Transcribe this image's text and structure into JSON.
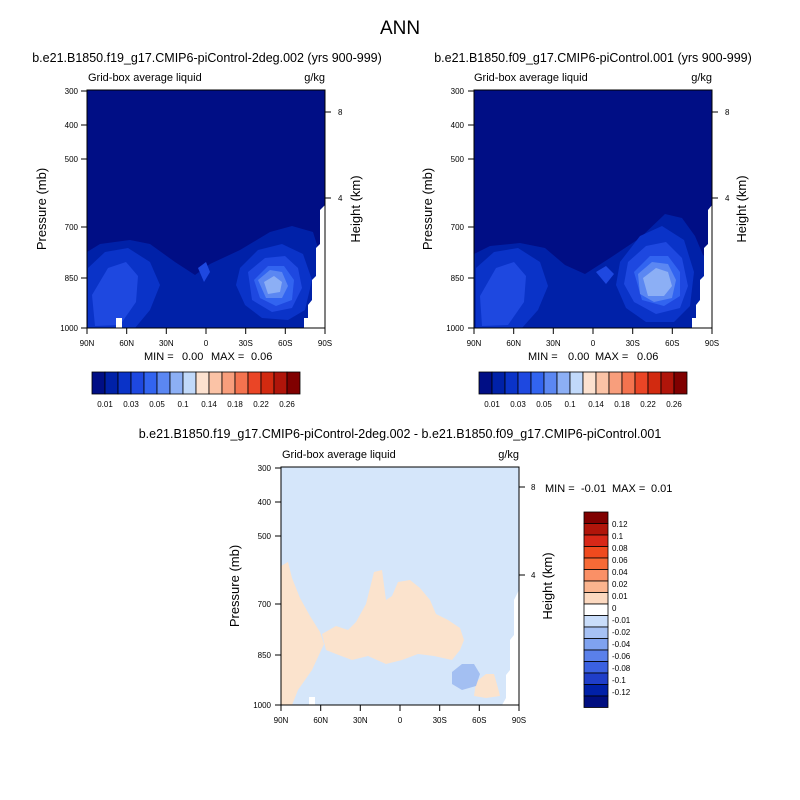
{
  "page_title": "ANN",
  "colors": {
    "abs_scale": [
      "#000e85",
      "#0021a8",
      "#0a33c8",
      "#1e48e0",
      "#3264f0",
      "#5b87f2",
      "#8caff5",
      "#c1d9fa",
      "#fce1cf",
      "#fbc3a6",
      "#f89e7c",
      "#f4734f",
      "#ea4526",
      "#d22a10",
      "#b0150a",
      "#800000"
    ],
    "diff_scale": [
      "#800000",
      "#b0150a",
      "#d82818",
      "#f04a1e",
      "#f76a36",
      "#fa9066",
      "#fbb48e",
      "#fcd9c0",
      "#ffffff",
      "#c9ddfa",
      "#a6c1f4",
      "#7fa2ef",
      "#5a80ea",
      "#3b61e1",
      "#1f3ec9",
      "#0020a8",
      "#000e80"
    ],
    "diff_bg": "#d5e6fa",
    "diff_pos": "#fbe3cd",
    "diff_neg": "#a3bff2"
  },
  "chart_data": [
    {
      "type": "heatmap",
      "title": "b.e21.B1850.f19_g17.CMIP6-piControl-2deg.002 (yrs 900-999)",
      "subtitle_left": "Grid-box average liquid",
      "subtitle_right": "g/kg",
      "ylabel": "Pressure (mb)",
      "ylabel_right": "Height (km)",
      "x_ticks": [
        "90N",
        "60N",
        "30N",
        "0",
        "30S",
        "60S",
        "90S"
      ],
      "y_ticks": [
        "300",
        "400",
        "500",
        "700",
        "850",
        "1000"
      ],
      "y_ticks_right": [
        "8",
        "4"
      ],
      "ylim": [
        1000,
        300
      ],
      "stats": {
        "min_label": "MIN =",
        "min": "0.00",
        "max_label": "MAX =",
        "max": "0.06"
      },
      "colorbar_labels": [
        "0.01",
        "0.03",
        "0.05",
        "0.1",
        "0.14",
        "0.18",
        "0.22",
        "0.26"
      ]
    },
    {
      "type": "heatmap",
      "title": "b.e21.B1850.f09_g17.CMIP6-piControl.001 (yrs 900-999)",
      "subtitle_left": "Grid-box average liquid",
      "subtitle_right": "g/kg",
      "ylabel": "Pressure (mb)",
      "ylabel_right": "Height (km)",
      "x_ticks": [
        "90N",
        "60N",
        "30N",
        "0",
        "30S",
        "60S",
        "90S"
      ],
      "y_ticks": [
        "300",
        "400",
        "500",
        "700",
        "850",
        "1000"
      ],
      "y_ticks_right": [
        "8",
        "4"
      ],
      "ylim": [
        1000,
        300
      ],
      "stats": {
        "min_label": "MIN =",
        "min": "0.00",
        "max_label": "MAX =",
        "max": "0.06"
      },
      "colorbar_labels": [
        "0.01",
        "0.03",
        "0.05",
        "0.1",
        "0.14",
        "0.18",
        "0.22",
        "0.26"
      ]
    },
    {
      "type": "heatmap",
      "title": "b.e21.B1850.f19_g17.CMIP6-piControl-2deg.002 - b.e21.B1850.f09_g17.CMIP6-piControl.001",
      "subtitle_left": "Grid-box average liquid",
      "subtitle_right": "g/kg",
      "ylabel": "Pressure (mb)",
      "ylabel_right": "Height (km)",
      "x_ticks": [
        "90N",
        "60N",
        "30N",
        "0",
        "30S",
        "60S",
        "90S"
      ],
      "y_ticks": [
        "300",
        "400",
        "500",
        "700",
        "850",
        "1000"
      ],
      "y_ticks_right": [
        "8",
        "4"
      ],
      "ylim": [
        1000,
        300
      ],
      "stats": {
        "min_label": "MIN =",
        "min": "-0.01",
        "max_label": "MAX =",
        "max": "0.01"
      },
      "colorbar_labels": [
        "0.12",
        "0.1",
        "0.08",
        "0.06",
        "0.04",
        "0.02",
        "0.01",
        "0",
        "-0.01",
        "-0.02",
        "-0.04",
        "-0.06",
        "-0.08",
        "-0.1",
        "-0.12"
      ]
    }
  ]
}
